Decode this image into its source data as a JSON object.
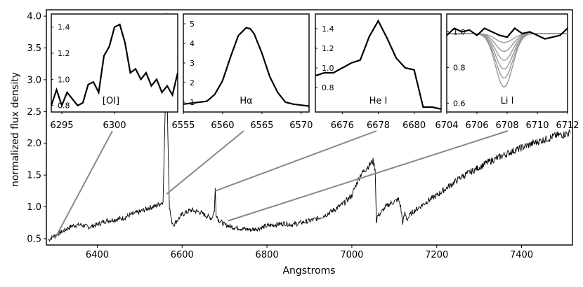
{
  "chart_data": {
    "type": "line",
    "xlabel": "Angstroms",
    "ylabel": "normalized flux density",
    "xlim": [
      6280,
      7520
    ],
    "ylim": [
      0.4,
      4.1
    ],
    "xticks": [
      6400,
      6600,
      6800,
      7000,
      7200,
      7400
    ],
    "yticks": [
      0.5,
      1.0,
      1.5,
      2.0,
      2.5,
      3.0,
      3.5,
      4.0
    ],
    "ytick_labels": [
      "0.5",
      "1.0",
      "1.5",
      "2.0",
      "2.5",
      "3.0",
      "3.5",
      "4.0"
    ],
    "series": [
      {
        "x": [
          6285,
          6300,
          6320,
          6340,
          6360,
          6380,
          6400,
          6420,
          6440,
          6460,
          6480,
          6500,
          6520,
          6540,
          6555,
          6560,
          6563,
          6566,
          6570,
          6575,
          6580,
          6600,
          6620,
          6640,
          6660,
          6670,
          6676,
          6678,
          6680,
          6685,
          6700,
          6720,
          6740,
          6760,
          6780,
          6800,
          6820,
          6840,
          6860,
          6880,
          6900,
          6920,
          6940,
          6960,
          6980,
          7000,
          7010,
          7020,
          7040,
          7050,
          7055,
          7058,
          7060,
          7070,
          7080,
          7090,
          7100,
          7110,
          7115,
          7120,
          7125,
          7130,
          7140,
          7160,
          7180,
          7200,
          7220,
          7240,
          7260,
          7280,
          7300,
          7320,
          7340,
          7360,
          7380,
          7400,
          7420,
          7440,
          7460,
          7480,
          7500,
          7515
        ],
        "y": [
          0.48,
          0.55,
          0.62,
          0.7,
          0.72,
          0.68,
          0.72,
          0.78,
          0.8,
          0.82,
          0.88,
          0.92,
          0.98,
          1.02,
          1.08,
          2.5,
          4.05,
          2.2,
          1.0,
          0.78,
          0.72,
          0.88,
          0.95,
          0.92,
          0.85,
          0.82,
          0.95,
          1.28,
          0.9,
          0.8,
          0.72,
          0.68,
          0.66,
          0.64,
          0.66,
          0.7,
          0.72,
          0.74,
          0.72,
          0.75,
          0.78,
          0.82,
          0.88,
          0.96,
          1.05,
          1.18,
          1.35,
          1.5,
          1.65,
          1.72,
          1.6,
          0.75,
          0.85,
          0.92,
          1.0,
          1.05,
          1.08,
          1.12,
          1.0,
          0.75,
          0.9,
          0.8,
          0.9,
          1.0,
          1.1,
          1.18,
          1.28,
          1.38,
          1.48,
          1.55,
          1.62,
          1.7,
          1.76,
          1.82,
          1.88,
          1.93,
          1.98,
          2.03,
          2.07,
          2.12,
          2.14,
          2.16
        ]
      }
    ],
    "insets": [
      {
        "label": "[OI]",
        "xlim": [
          6294,
          6306
        ],
        "ylim": [
          0.75,
          1.5
        ],
        "xticks": [
          6295,
          6300
        ],
        "xtick_labels": [
          "6295",
          "6300"
        ],
        "yticks": [
          0.8,
          1.0,
          1.2,
          1.4
        ],
        "ytick_labels": [
          "0.8",
          "1.0",
          "1.2",
          "1.4"
        ],
        "x": [
          6294,
          6294.5,
          6295,
          6295.5,
          6296,
          6296.5,
          6297,
          6297.5,
          6298,
          6298.5,
          6299,
          6299.5,
          6300,
          6300.5,
          6301,
          6301.5,
          6302,
          6302.5,
          6303,
          6303.5,
          6304,
          6304.5,
          6305,
          6305.5,
          6306
        ],
        "y": [
          0.8,
          0.92,
          0.8,
          0.9,
          0.85,
          0.8,
          0.82,
          0.96,
          0.98,
          0.9,
          1.18,
          1.25,
          1.4,
          1.42,
          1.28,
          1.05,
          1.08,
          1.0,
          1.05,
          0.95,
          1.0,
          0.9,
          0.95,
          0.88,
          1.05
        ]
      },
      {
        "label": "Hα",
        "xlim": [
          6555,
          6571
        ],
        "ylim": [
          0.5,
          5.5
        ],
        "xticks": [
          6555,
          6560,
          6565,
          6570
        ],
        "xtick_labels": [
          "6555",
          "6560",
          "6565",
          "6570"
        ],
        "yticks": [
          1,
          2,
          3,
          4,
          5
        ],
        "ytick_labels": [
          "1",
          "2",
          "3",
          "4",
          "5"
        ],
        "x": [
          6555,
          6556,
          6557,
          6558,
          6559,
          6560,
          6561,
          6562,
          6563,
          6563.5,
          6564,
          6565,
          6566,
          6567,
          6568,
          6569,
          6570,
          6571
        ],
        "y": [
          0.9,
          0.95,
          1.0,
          1.05,
          1.4,
          2.1,
          3.3,
          4.4,
          4.8,
          4.75,
          4.5,
          3.5,
          2.3,
          1.5,
          1.0,
          0.9,
          0.85,
          0.8
        ],
        "inset_label_xy": [
          6563,
          1.2
        ]
      },
      {
        "label": "He I",
        "xlim": [
          6674.5,
          6681.5
        ],
        "ylim": [
          0.55,
          1.55
        ],
        "xticks": [
          6676,
          6678,
          6680
        ],
        "xtick_labels": [
          "6676",
          "6678",
          "6680"
        ],
        "yticks": [
          0.8,
          1.0,
          1.2,
          1.4
        ],
        "ytick_labels": [
          "0.8",
          "1.0",
          "1.2",
          "1.4"
        ],
        "x": [
          6674.5,
          6675,
          6675.5,
          6676,
          6676.5,
          6677,
          6677.5,
          6678,
          6678.5,
          6679,
          6679.5,
          6680,
          6680.5,
          6681,
          6681.5
        ],
        "y": [
          0.92,
          0.95,
          0.95,
          1.0,
          1.05,
          1.08,
          1.32,
          1.48,
          1.3,
          1.1,
          1.0,
          0.98,
          0.6,
          0.6,
          0.58
        ]
      },
      {
        "label": "Li I",
        "xlim": [
          6704,
          6712
        ],
        "ylim": [
          0.55,
          1.1
        ],
        "xticks": [
          6704,
          6706,
          6708,
          6710,
          6712
        ],
        "xtick_labels": [
          "6704",
          "6706",
          "6708",
          "6710",
          "6712"
        ],
        "yticks": [
          0.6,
          0.8,
          1.0
        ],
        "ytick_labels": [
          "0.6",
          "0.8",
          "1.0"
        ],
        "x": [
          6704,
          6704.5,
          6705,
          6705.5,
          6706,
          6706.5,
          6707,
          6707.5,
          6708,
          6708.5,
          6709,
          6709.5,
          6710,
          6710.5,
          6711,
          6711.5,
          6712
        ],
        "y": [
          0.98,
          1.02,
          1.0,
          1.01,
          0.98,
          1.02,
          1.0,
          0.98,
          0.97,
          1.02,
          0.99,
          1.0,
          0.98,
          0.96,
          0.97,
          0.98,
          1.02
        ],
        "model_depths": [
          0.05,
          0.1,
          0.15,
          0.2,
          0.25,
          0.3
        ]
      }
    ]
  }
}
